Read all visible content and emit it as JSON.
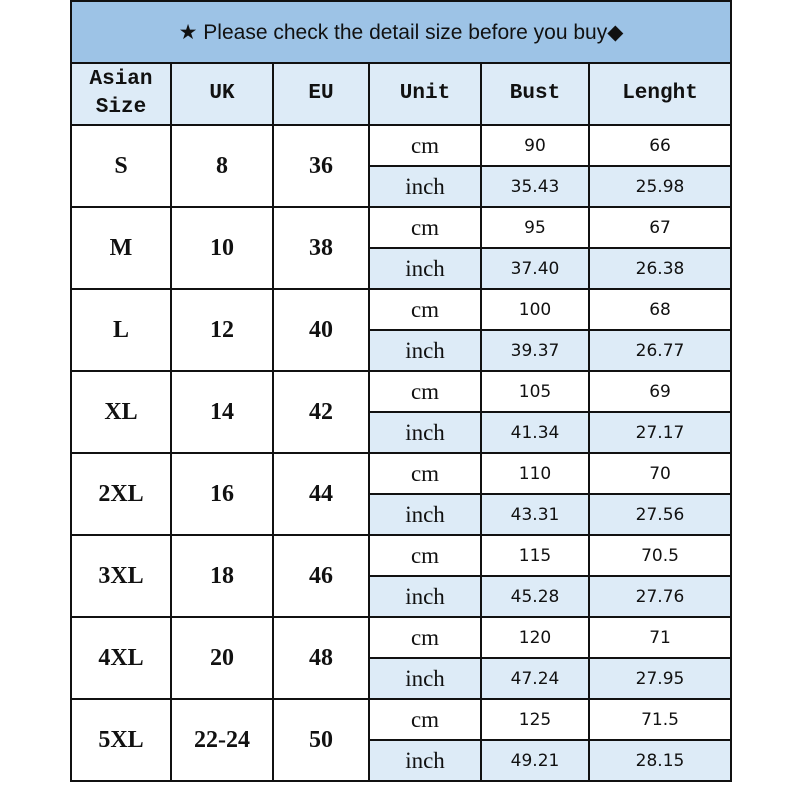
{
  "title": {
    "icon_left": "star-icon",
    "icon_right": "diamond-icon",
    "text": "★ Please check the detail size before you buy◆"
  },
  "headers": [
    "Asian Size",
    "UK",
    "EU",
    "Unit",
    "Bust",
    "Lenght"
  ],
  "colors": {
    "title_bg": "#9dc3e6",
    "header_bg": "#ddebf7",
    "inch_row_bg": "#ddebf7"
  },
  "rows": [
    {
      "asian": "S",
      "uk": "8",
      "eu": "36",
      "cm": {
        "unit": "cm",
        "bust": "90",
        "length": "66"
      },
      "inch": {
        "unit": "inch",
        "bust": "35.43",
        "length": "25.98"
      }
    },
    {
      "asian": "M",
      "uk": "10",
      "eu": "38",
      "cm": {
        "unit": "cm",
        "bust": "95",
        "length": "67"
      },
      "inch": {
        "unit": "inch",
        "bust": "37.40",
        "length": "26.38"
      }
    },
    {
      "asian": "L",
      "uk": "12",
      "eu": "40",
      "cm": {
        "unit": "cm",
        "bust": "100",
        "length": "68"
      },
      "inch": {
        "unit": "inch",
        "bust": "39.37",
        "length": "26.77"
      }
    },
    {
      "asian": "XL",
      "uk": "14",
      "eu": "42",
      "cm": {
        "unit": "cm",
        "bust": "105",
        "length": "69"
      },
      "inch": {
        "unit": "inch",
        "bust": "41.34",
        "length": "27.17"
      }
    },
    {
      "asian": "2XL",
      "uk": "16",
      "eu": "44",
      "cm": {
        "unit": "cm",
        "bust": "110",
        "length": "70"
      },
      "inch": {
        "unit": "inch",
        "bust": "43.31",
        "length": "27.56"
      }
    },
    {
      "asian": "3XL",
      "uk": "18",
      "eu": "46",
      "cm": {
        "unit": "cm",
        "bust": "115",
        "length": "70.5"
      },
      "inch": {
        "unit": "inch",
        "bust": "45.28",
        "length": "27.76"
      }
    },
    {
      "asian": "4XL",
      "uk": "20",
      "eu": "48",
      "cm": {
        "unit": "cm",
        "bust": "120",
        "length": "71"
      },
      "inch": {
        "unit": "inch",
        "bust": "47.24",
        "length": "27.95"
      }
    },
    {
      "asian": "5XL",
      "uk": "22-24",
      "eu": "50",
      "cm": {
        "unit": "cm",
        "bust": "125",
        "length": "71.5"
      },
      "inch": {
        "unit": "inch",
        "bust": "49.21",
        "length": "28.15"
      }
    }
  ]
}
